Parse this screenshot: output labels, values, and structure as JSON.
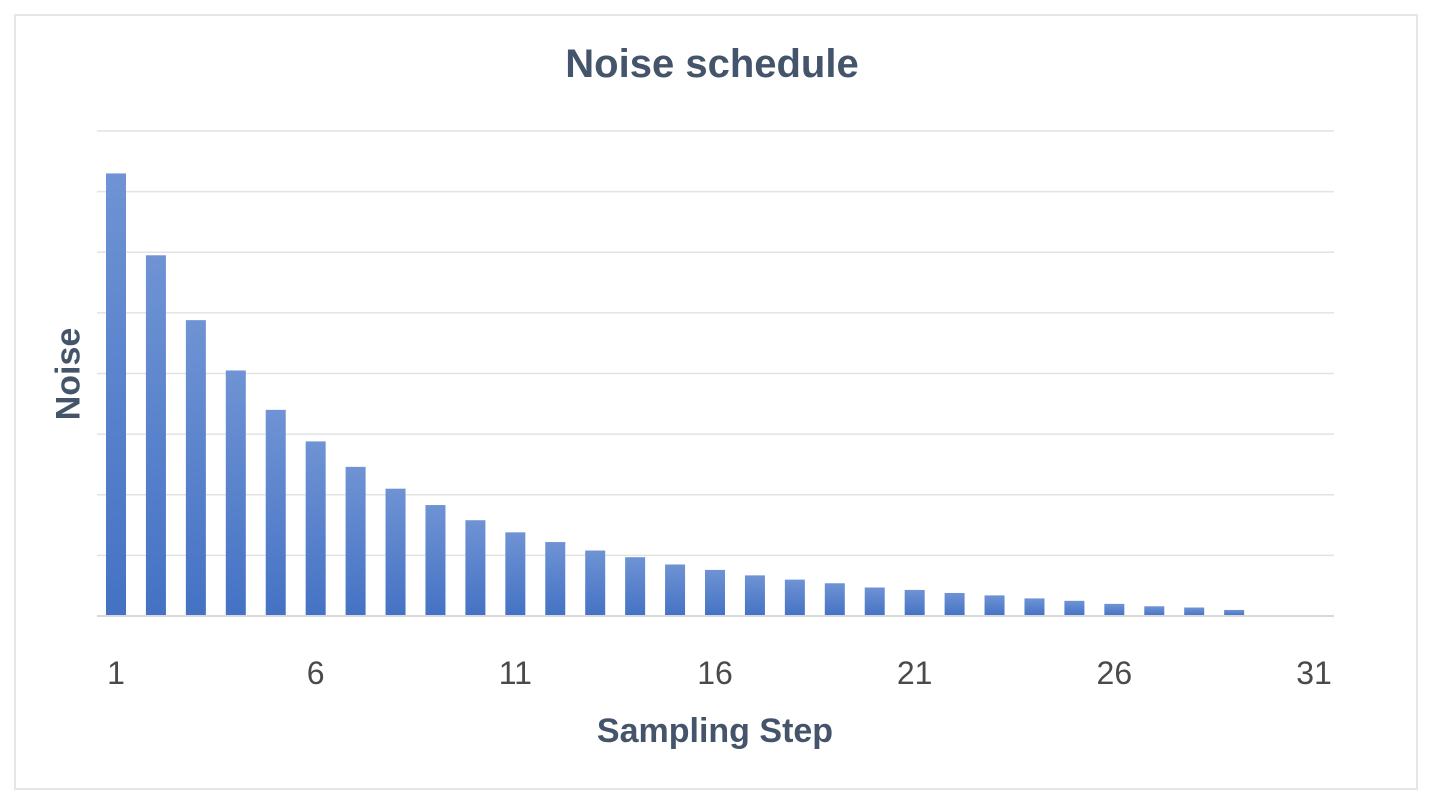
{
  "chart_data": {
    "type": "bar",
    "title": "Noise schedule",
    "xlabel": "Sampling Step",
    "ylabel": "Noise",
    "x_tick_labels": [
      "1",
      "6",
      "11",
      "16",
      "21",
      "26",
      "31"
    ],
    "categories": [
      1,
      2,
      3,
      4,
      5,
      6,
      7,
      8,
      9,
      10,
      11,
      12,
      13,
      14,
      15,
      16,
      17,
      18,
      19,
      20,
      21,
      22,
      23,
      24,
      25,
      26,
      27,
      28,
      29,
      30,
      31
    ],
    "values": [
      7.3,
      5.95,
      4.88,
      4.05,
      3.4,
      2.88,
      2.46,
      2.1,
      1.83,
      1.58,
      1.38,
      1.22,
      1.08,
      0.97,
      0.85,
      0.76,
      0.67,
      0.6,
      0.54,
      0.47,
      0.43,
      0.38,
      0.34,
      0.29,
      0.25,
      0.2,
      0.16,
      0.14,
      0.1,
      0,
      0
    ],
    "ylim": [
      0,
      8
    ],
    "y_gridlines": true,
    "y_tick_labels_shown": false,
    "bar_color": "#4472c4",
    "bar_color_light": "#6f93d4"
  }
}
